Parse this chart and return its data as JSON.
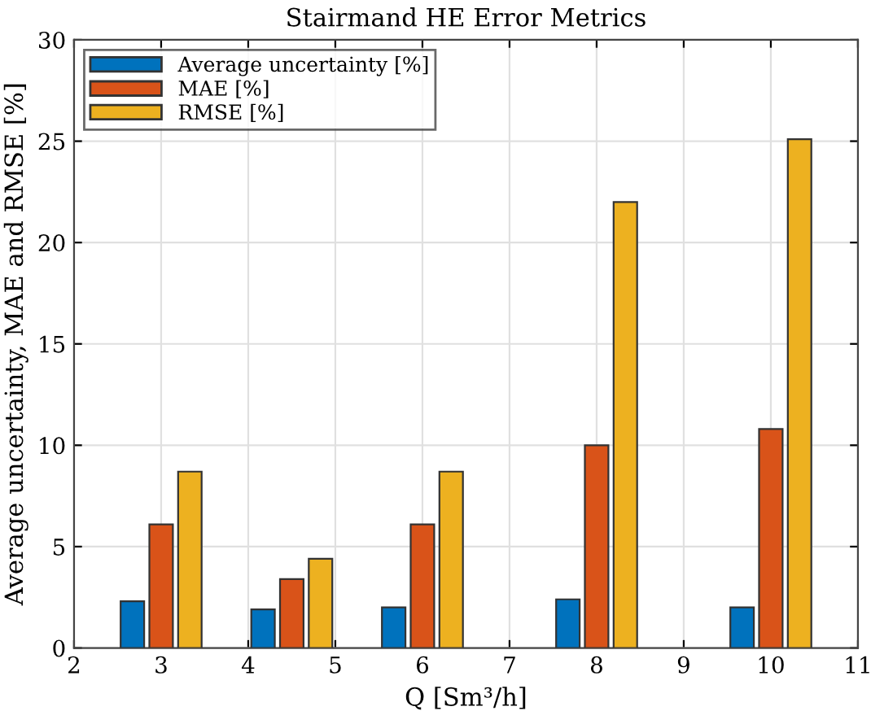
{
  "chart_data": {
    "type": "bar",
    "title": "Stairmand HE Error Metrics",
    "xlabel": "Q [Sm³/h]",
    "ylabel": "Average uncertainty, MAE and RMSE [%]",
    "x": [
      3,
      4.5,
      6,
      8,
      10
    ],
    "series": [
      {
        "name": "Average uncertainty [%]",
        "color": "#0072bd",
        "values": [
          2.3,
          1.9,
          2.0,
          2.4,
          2.0
        ]
      },
      {
        "name": "MAE [%]",
        "color": "#d95319",
        "values": [
          6.1,
          3.4,
          6.1,
          10.0,
          10.8
        ]
      },
      {
        "name": "RMSE [%]",
        "color": "#edb120",
        "values": [
          8.7,
          4.4,
          8.7,
          22.0,
          25.1
        ]
      }
    ],
    "xlim": [
      2,
      11
    ],
    "xticks": [
      2,
      3,
      4,
      5,
      6,
      7,
      8,
      9,
      10,
      11
    ],
    "ylim": [
      0,
      30
    ],
    "yticks": [
      0,
      5,
      10,
      15,
      20,
      25,
      30
    ],
    "grid": true,
    "legend": "top left"
  }
}
